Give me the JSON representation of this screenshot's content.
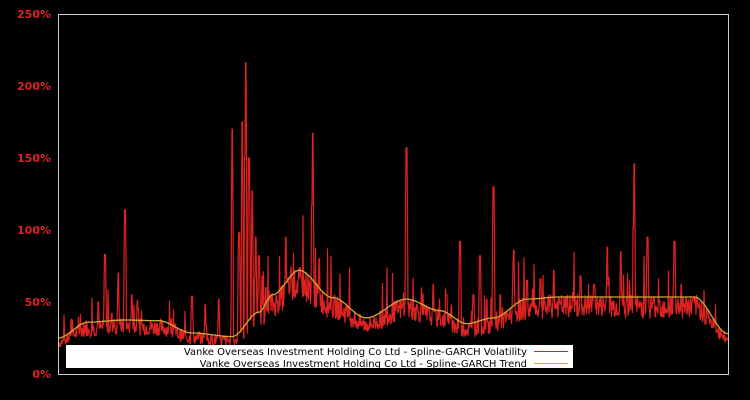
{
  "chart_data": {
    "type": "line",
    "title": "",
    "xlabel": "",
    "ylabel": "",
    "ylim": [
      0,
      250
    ],
    "y_ticks": [
      "0%",
      "50%",
      "100%",
      "150%",
      "200%",
      "250%"
    ],
    "y_tick_values": [
      0,
      50,
      100,
      150,
      200,
      250
    ],
    "grid": false,
    "legend_position": "lower left",
    "background": "#000000",
    "axis_color": "#cccccc",
    "tick_color": "#dd2222",
    "series": [
      {
        "name": "Vanke Overseas Investment Holding Co Ltd - Spline-GARCH Volatility",
        "color": "#dd2222",
        "x_frac": [
          0.0,
          0.02,
          0.04,
          0.06,
          0.07,
          0.08,
          0.09,
          0.1,
          0.11,
          0.12,
          0.13,
          0.14,
          0.15,
          0.16,
          0.18,
          0.2,
          0.22,
          0.24,
          0.26,
          0.27,
          0.275,
          0.28,
          0.285,
          0.29,
          0.295,
          0.3,
          0.305,
          0.31,
          0.32,
          0.33,
          0.34,
          0.35,
          0.36,
          0.37,
          0.38,
          0.39,
          0.4,
          0.41,
          0.42,
          0.43,
          0.44,
          0.45,
          0.46,
          0.47,
          0.48,
          0.5,
          0.52,
          0.54,
          0.56,
          0.57,
          0.58,
          0.6,
          0.62,
          0.63,
          0.64,
          0.65,
          0.66,
          0.68,
          0.7,
          0.72,
          0.74,
          0.75,
          0.76,
          0.78,
          0.8,
          0.82,
          0.84,
          0.86,
          0.88,
          0.9,
          0.92,
          0.93,
          0.94,
          0.95,
          0.96,
          0.97,
          0.98,
          0.99,
          1.0
        ],
        "values": [
          22,
          38,
          32,
          50,
          83,
          42,
          70,
          114,
          55,
          45,
          38,
          40,
          30,
          28,
          34,
          54,
          48,
          52,
          170,
          98,
          175,
          216,
          150,
          127,
          95,
          82,
          68,
          60,
          42,
          40,
          95,
          36,
          42,
          48,
          167,
          80,
          56,
          52,
          46,
          48,
          40,
          38,
          35,
          38,
          33,
          32,
          157,
          38,
          62,
          48,
          55,
          92,
          55,
          82,
          52,
          130,
          55,
          86,
          65,
          66,
          72,
          60,
          58,
          68,
          62,
          88,
          85,
          146,
          95,
          55,
          92,
          62,
          40,
          30,
          28,
          24,
          25,
          24,
          23
        ]
      },
      {
        "name": "Vanke Overseas Investment Holding Co Ltd - Spline-GARCH Trend",
        "color": "#ccaa33",
        "x_frac": [
          0.0,
          0.045,
          0.1,
          0.15,
          0.2,
          0.26,
          0.3,
          0.32,
          0.36,
          0.41,
          0.46,
          0.52,
          0.57,
          0.61,
          0.65,
          0.7,
          0.75,
          0.8,
          0.9,
          0.95,
          1.0
        ],
        "values": [
          25,
          36,
          37.5,
          37,
          28.5,
          26,
          43,
          55,
          72,
          53,
          39,
          52,
          44,
          35,
          39,
          52,
          53.5,
          53.5,
          53.5,
          53.5,
          28
        ]
      }
    ]
  },
  "legend": {
    "items": [
      {
        "label": "Vanke Overseas Investment Holding Co Ltd - Spline-GARCH Volatility",
        "color": "#dd2222"
      },
      {
        "label": "Vanke Overseas Investment Holding Co Ltd - Spline-GARCH Trend",
        "color": "#ccaa33"
      }
    ]
  }
}
